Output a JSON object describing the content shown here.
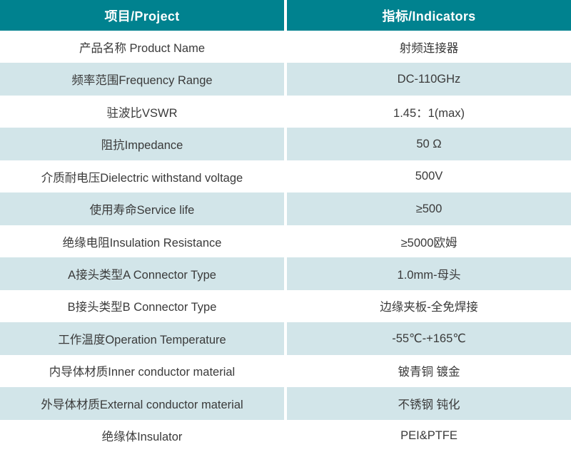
{
  "colors": {
    "header_bg": "#00828F",
    "header_text": "#FFFFFF",
    "row_bg": "#FFFFFF",
    "row_alt_bg": "#D2E5E9",
    "text": "#3A3A3A"
  },
  "table": {
    "header": {
      "project": "项目/Project",
      "indicators": "指标/Indicators"
    },
    "rows": [
      {
        "project": "产品名称 Product Name",
        "indicator": "射频连接器"
      },
      {
        "project": "频率范围Frequency Range",
        "indicator": "DC-110GHz"
      },
      {
        "project": "驻波比VSWR",
        "indicator": "1.45：1(max)"
      },
      {
        "project": "阻抗Impedance",
        "indicator": "50 Ω"
      },
      {
        "project": "介质耐电压Dielectric withstand voltage",
        "indicator": "500V"
      },
      {
        "project": "使用寿命Service life",
        "indicator": "≥500"
      },
      {
        "project": "绝缘电阻Insulation Resistance",
        "indicator": "≥5000欧姆"
      },
      {
        "project": "A接头类型A Connector Type",
        "indicator": "1.0mm-母头"
      },
      {
        "project": "B接头类型B Connector Type",
        "indicator": "边缘夹板-全免焊接"
      },
      {
        "project": "工作温度Operation Temperature",
        "indicator": "-55℃-+165℃"
      },
      {
        "project": "内导体材质Inner conductor material",
        "indicator": "铍青铜 镀金"
      },
      {
        "project": "外导体材质External conductor material",
        "indicator": "不锈钢 钝化"
      },
      {
        "project": "绝缘体Insulator",
        "indicator": "PEI&PTFE"
      }
    ]
  }
}
